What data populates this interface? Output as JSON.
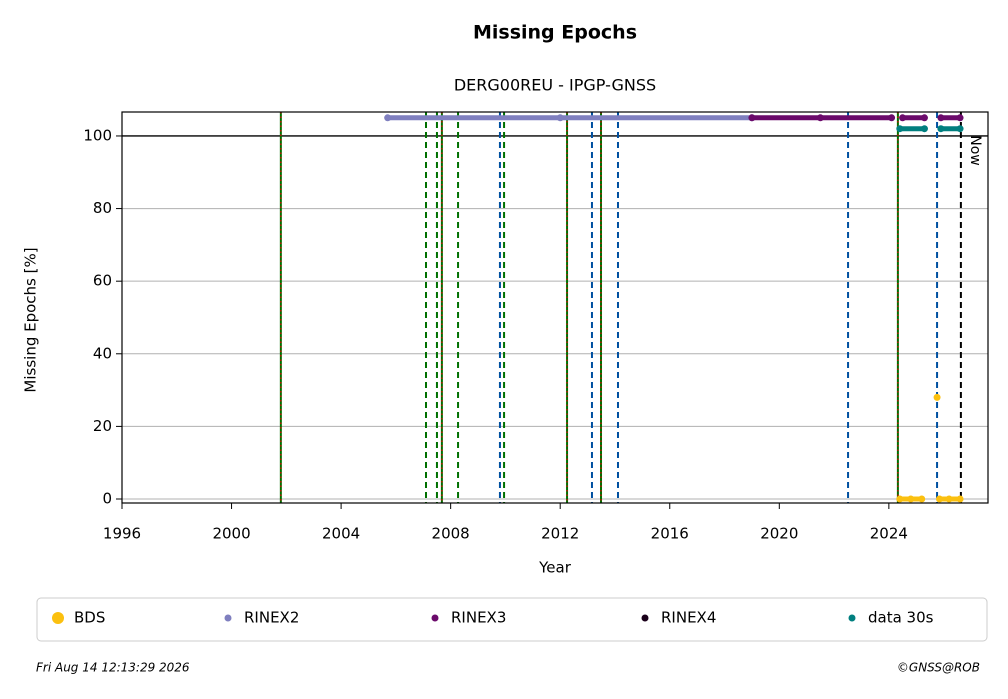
{
  "chart_data": {
    "type": "scatter",
    "title": "Missing Epochs",
    "subtitle": "DERG00REU - IPGP-GNSS",
    "x_label": "Year",
    "y_label": "Missing Epochs [%]",
    "xlim": [
      1996,
      2027.62
    ],
    "ylim": [
      -1.1,
      106.6
    ],
    "xticks": [
      1996,
      2000,
      2004,
      2008,
      2012,
      2016,
      2020,
      2024
    ],
    "yticks": [
      0,
      20,
      40,
      60,
      80,
      100
    ],
    "grid": true,
    "hline": 100,
    "series": [
      {
        "name": "BDS",
        "color": "#fbc00f",
        "x": [
          2024.4,
          2024.8,
          2025.2,
          2025.5,
          2025.76,
          2025.8,
          2025.85,
          2026.2,
          2026.6
        ],
        "values": [
          0,
          0,
          0,
          null,
          28,
          null,
          0,
          0,
          0
        ]
      },
      {
        "name": "RINEX2",
        "color": "#7f7fbf",
        "x": [
          2005.7,
          2012,
          2019
        ],
        "values": [
          105,
          105,
          105
        ]
      },
      {
        "name": "RINEX3",
        "color": "#6b0a6b",
        "x": [
          2019,
          2021.5,
          2024.1,
          2024.3,
          2024.5,
          2025.3,
          2025.6,
          2025.9,
          2026.6
        ],
        "values": [
          105,
          105,
          105,
          null,
          105,
          105,
          null,
          105,
          105
        ]
      },
      {
        "name": "RINEX4",
        "color": "#1a001a",
        "x": [],
        "values": []
      },
      {
        "name": "data 30s",
        "color": "#007f7f",
        "x": [
          2024.4,
          2025.3,
          2025.6,
          2025.9,
          2026.6
        ],
        "values": [
          102,
          102,
          null,
          102,
          102
        ]
      }
    ],
    "events": [
      {
        "x": 2001.8,
        "color": "#007000",
        "style": "solid"
      },
      {
        "x": 2007.1,
        "color": "#007000",
        "style": "dashed"
      },
      {
        "x": 2007.5,
        "color": "#007000",
        "style": "dashed"
      },
      {
        "x": 2007.68,
        "color": "#007000",
        "style": "solid"
      },
      {
        "x": 2008.27,
        "color": "#007000",
        "style": "dashed"
      },
      {
        "x": 2009.8,
        "color": "#0050a0",
        "style": "dashed"
      },
      {
        "x": 2009.95,
        "color": "#007000",
        "style": "dashed"
      },
      {
        "x": 2012.25,
        "color": "#007000",
        "style": "solid"
      },
      {
        "x": 2013.16,
        "color": "#0050a0",
        "style": "dashed"
      },
      {
        "x": 2013.49,
        "color": "#007000",
        "style": "solid"
      },
      {
        "x": 2014.11,
        "color": "#0050a0",
        "style": "dashed"
      },
      {
        "x": 2022.51,
        "color": "#0050a0",
        "style": "dashed"
      },
      {
        "x": 2024.33,
        "color": "#007000",
        "style": "solid"
      },
      {
        "x": 2025.76,
        "color": "#0050a0",
        "style": "dashed"
      }
    ],
    "now": {
      "x": 2026.63,
      "label": "Now"
    },
    "timestamp": "Fri Aug 14 12:13:29 2026",
    "credit": "©GNSS@ROB"
  }
}
